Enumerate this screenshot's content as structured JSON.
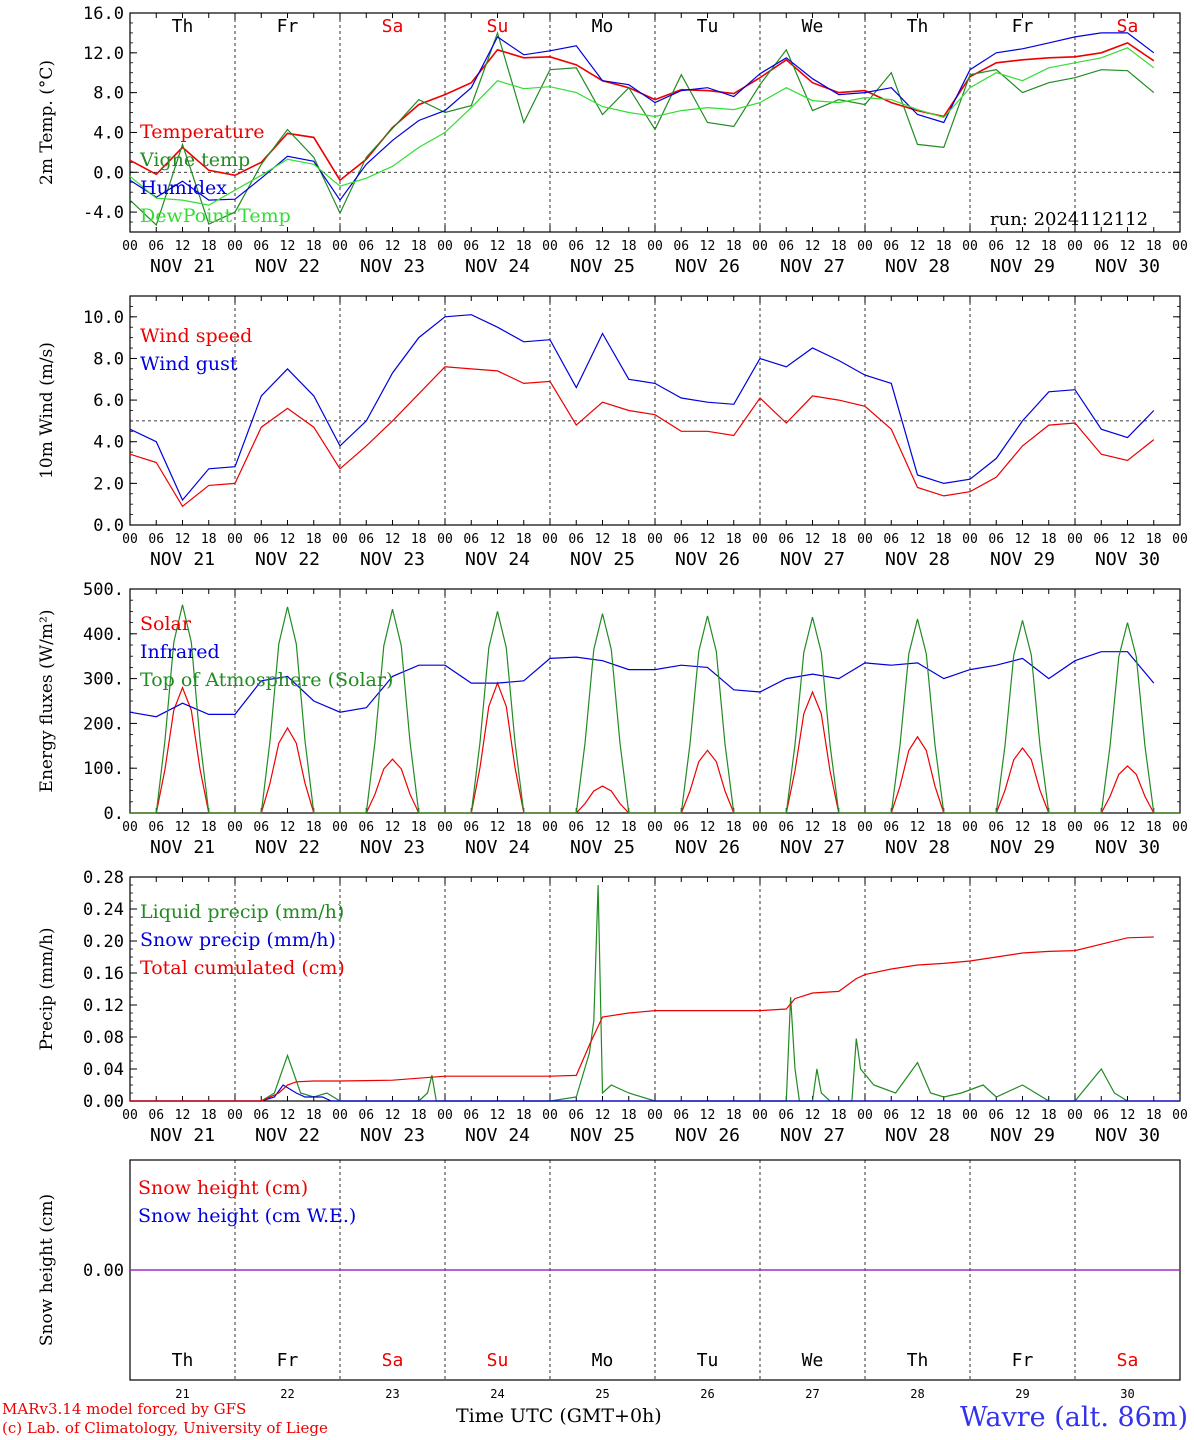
{
  "run_label": "run: 2024112112",
  "footer": {
    "credit_line1": "MARv3.14 model forced by GFS",
    "credit_line2": "(c) Lab. of Climatology, University of Liege",
    "xlabel": "Time UTC (GMT+0h)",
    "station": "Wavre (alt. 86m)"
  },
  "days": {
    "weekdays": [
      "Th",
      "Fr",
      "Sa",
      "Su",
      "Mo",
      "Tu",
      "We",
      "Th",
      "Fr",
      "Sa"
    ],
    "weekend_flags": [
      false,
      false,
      true,
      true,
      false,
      false,
      false,
      false,
      false,
      true
    ],
    "date_labels": [
      "NOV 21",
      "NOV 22",
      "NOV 23",
      "NOV 24",
      "NOV 25",
      "NOV 26",
      "NOV 27",
      "NOV 28",
      "NOV 29",
      "NOV 30"
    ],
    "day_numbers": [
      "21",
      "22",
      "23",
      "24",
      "25",
      "26",
      "27",
      "28",
      "29",
      "30"
    ],
    "hour_ticks": [
      "00",
      "06",
      "12",
      "18"
    ],
    "hour_tick_final": "00"
  },
  "colors": {
    "red": "#ee0000",
    "darkgreen": "#228b22",
    "blue": "#0000dd",
    "lightgreen": "#33dd33",
    "purple": "#8a2be2",
    "weekend": "#ee0000"
  },
  "chart_data": [
    {
      "type": "line",
      "ylabel": "2m Temp. (°C)",
      "ylim": [
        -6,
        16
      ],
      "yticks": [
        "-4.0",
        "0.0",
        "4.0",
        "8.0",
        "12.0",
        "16.0"
      ],
      "ytick_values": [
        -4,
        0,
        4,
        8,
        12,
        16
      ],
      "hline": 0,
      "x_unit": "hours since NOV 21 00 UTC",
      "series": [
        {
          "name": "Temperature",
          "color": "#ee0000",
          "x": [
            0,
            6,
            12,
            18,
            24,
            30,
            36,
            42,
            48,
            54,
            60,
            66,
            72,
            78,
            84,
            90,
            96,
            102,
            108,
            114,
            120,
            126,
            132,
            138,
            144,
            150,
            156,
            162,
            168,
            174,
            180,
            186,
            192,
            198,
            204,
            210,
            216,
            222,
            228,
            234
          ],
          "y": [
            1.2,
            -0.2,
            2.5,
            0.2,
            -0.3,
            1.0,
            3.9,
            3.5,
            -0.8,
            1.3,
            4.5,
            6.8,
            7.8,
            9.0,
            12.3,
            11.5,
            11.6,
            10.8,
            9.2,
            8.5,
            7.3,
            8.3,
            8.2,
            7.9,
            9.5,
            11.3,
            9.0,
            8.0,
            8.2,
            7.0,
            6.2,
            5.6,
            9.6,
            11.0,
            11.3,
            11.5,
            11.6,
            12.0,
            13.0,
            11.2
          ]
        },
        {
          "name": "Vigne temp",
          "color": "#228b22",
          "x": [
            0,
            6,
            12,
            18,
            24,
            30,
            36,
            42,
            48,
            54,
            60,
            66,
            72,
            78,
            84,
            90,
            96,
            102,
            108,
            114,
            120,
            126,
            132,
            138,
            144,
            150,
            156,
            162,
            168,
            174,
            180,
            186,
            192,
            198,
            204,
            210,
            216,
            222,
            228,
            234
          ],
          "y": [
            -2.8,
            -5.3,
            2.8,
            -5.2,
            -4.0,
            0.8,
            4.3,
            1.5,
            -4.1,
            1.5,
            4.4,
            7.3,
            6.0,
            6.7,
            14.0,
            5.0,
            10.3,
            10.5,
            5.8,
            8.5,
            4.3,
            9.8,
            5.0,
            4.6,
            8.8,
            12.3,
            6.2,
            7.3,
            6.8,
            10.0,
            2.8,
            2.5,
            9.8,
            10.3,
            8.0,
            9.0,
            9.5,
            10.3,
            10.2,
            8.0
          ]
        },
        {
          "name": "Humidex",
          "color": "#0000dd",
          "x": [
            0,
            6,
            12,
            18,
            24,
            30,
            36,
            42,
            48,
            54,
            60,
            66,
            72,
            78,
            84,
            90,
            96,
            102,
            108,
            114,
            120,
            126,
            132,
            138,
            144,
            150,
            156,
            162,
            168,
            174,
            180,
            186,
            192,
            198,
            204,
            210,
            216,
            222,
            228,
            234
          ],
          "y": [
            -0.8,
            -2.5,
            -0.9,
            -2.8,
            -2.7,
            -0.6,
            1.6,
            1.1,
            -2.8,
            0.8,
            3.2,
            5.2,
            6.2,
            8.5,
            13.6,
            11.8,
            12.2,
            12.7,
            9.2,
            8.8,
            7.0,
            8.2,
            8.5,
            7.6,
            9.9,
            11.5,
            9.4,
            7.8,
            8.0,
            8.5,
            5.8,
            5.0,
            10.3,
            12.0,
            12.4,
            13.0,
            13.6,
            14.0,
            14.0,
            12.0
          ]
        },
        {
          "name": "DewPoint Temp",
          "color": "#33dd33",
          "x": [
            0,
            6,
            12,
            18,
            24,
            30,
            36,
            42,
            48,
            54,
            60,
            66,
            72,
            78,
            84,
            90,
            96,
            102,
            108,
            114,
            120,
            126,
            132,
            138,
            144,
            150,
            156,
            162,
            168,
            174,
            180,
            186,
            192,
            198,
            204,
            210,
            216,
            222,
            228,
            234
          ],
          "y": [
            -0.4,
            -2.6,
            -2.8,
            -3.3,
            -1.8,
            -0.3,
            1.3,
            0.8,
            -1.4,
            -0.6,
            0.6,
            2.5,
            4.0,
            6.5,
            9.2,
            8.4,
            8.6,
            8.0,
            6.6,
            6.0,
            5.6,
            6.2,
            6.5,
            6.3,
            7.0,
            8.5,
            7.2,
            7.0,
            7.5,
            7.3,
            6.3,
            5.5,
            8.5,
            10.0,
            9.2,
            10.5,
            11.0,
            11.5,
            12.5,
            10.5
          ]
        }
      ]
    },
    {
      "type": "line",
      "ylabel": "10m Wind (m/s)",
      "ylim": [
        0,
        11
      ],
      "yticks": [
        "0.0",
        "2.0",
        "4.0",
        "6.0",
        "8.0",
        "10.0"
      ],
      "ytick_values": [
        0,
        2,
        4,
        6,
        8,
        10
      ],
      "hline": 5,
      "x_unit": "hours since NOV 21 00 UTC",
      "series": [
        {
          "name": "Wind speed",
          "color": "#ee0000",
          "x": [
            0,
            6,
            12,
            18,
            24,
            30,
            36,
            42,
            48,
            54,
            60,
            66,
            72,
            78,
            84,
            90,
            96,
            102,
            108,
            114,
            120,
            126,
            132,
            138,
            144,
            150,
            156,
            162,
            168,
            174,
            180,
            186,
            192,
            198,
            204,
            210,
            216,
            222,
            228,
            234
          ],
          "y": [
            3.4,
            3.0,
            0.9,
            1.9,
            2.0,
            4.7,
            5.6,
            4.7,
            2.7,
            3.8,
            5.0,
            6.3,
            7.6,
            7.5,
            7.4,
            6.8,
            6.9,
            4.8,
            5.9,
            5.5,
            5.3,
            4.5,
            4.5,
            4.3,
            6.1,
            4.9,
            6.2,
            6.0,
            5.7,
            4.6,
            1.8,
            1.4,
            1.6,
            2.3,
            3.8,
            4.8,
            4.9,
            3.4,
            3.1,
            4.1
          ]
        },
        {
          "name": "Wind gust",
          "color": "#0000dd",
          "x": [
            0,
            6,
            12,
            18,
            24,
            30,
            36,
            42,
            48,
            54,
            60,
            66,
            72,
            78,
            84,
            90,
            96,
            102,
            108,
            114,
            120,
            126,
            132,
            138,
            144,
            150,
            156,
            162,
            168,
            174,
            180,
            186,
            192,
            198,
            204,
            210,
            216,
            222,
            228,
            234
          ],
          "y": [
            4.6,
            4.0,
            1.2,
            2.7,
            2.8,
            6.2,
            7.5,
            6.2,
            3.8,
            5.0,
            7.3,
            9.0,
            10.0,
            10.1,
            9.5,
            8.8,
            8.9,
            6.6,
            9.2,
            7.0,
            6.8,
            6.1,
            5.9,
            5.8,
            8.0,
            7.6,
            8.5,
            7.9,
            7.2,
            6.8,
            2.4,
            2.0,
            2.2,
            3.2,
            5.0,
            6.4,
            6.5,
            4.6,
            4.2,
            5.5
          ]
        }
      ]
    },
    {
      "type": "line",
      "ylabel": "Energy fluxes (W/m²)",
      "ylim": [
        0,
        500
      ],
      "yticks": [
        "0.",
        "100.",
        "200.",
        "300.",
        "400.",
        "500."
      ],
      "ytick_values": [
        0,
        100,
        200,
        300,
        400,
        500
      ],
      "x_unit": "hours since NOV 21 00 UTC",
      "series": [
        {
          "name": "Solar",
          "color": "#ee0000",
          "peaks": [
            {
              "x": 12,
              "y": 280
            },
            {
              "x": 36,
              "y": 190
            },
            {
              "x": 60,
              "y": 120
            },
            {
              "x": 84,
              "y": 290
            },
            {
              "x": 108,
              "y": 60
            },
            {
              "x": 132,
              "y": 140
            },
            {
              "x": 156,
              "y": 270
            },
            {
              "x": 180,
              "y": 170
            },
            {
              "x": 204,
              "y": 145
            },
            {
              "x": 228,
              "y": 105
            }
          ]
        },
        {
          "name": "Infrared",
          "color": "#0000dd",
          "x": [
            0,
            6,
            12,
            18,
            24,
            30,
            36,
            42,
            48,
            54,
            60,
            66,
            72,
            78,
            84,
            90,
            96,
            102,
            108,
            114,
            120,
            126,
            132,
            138,
            144,
            150,
            156,
            162,
            168,
            174,
            180,
            186,
            192,
            198,
            204,
            210,
            216,
            222,
            228,
            234
          ],
          "y": [
            225,
            215,
            245,
            220,
            220,
            295,
            305,
            250,
            225,
            235,
            305,
            330,
            330,
            290,
            290,
            295,
            345,
            348,
            340,
            320,
            320,
            330,
            325,
            275,
            270,
            300,
            310,
            300,
            335,
            330,
            335,
            300,
            320,
            330,
            345,
            300,
            340,
            360,
            360,
            290
          ]
        },
        {
          "name": "Top of Atmosphere (Solar)",
          "color": "#228b22",
          "peaks": [
            {
              "x": 12,
              "y": 465
            },
            {
              "x": 36,
              "y": 460
            },
            {
              "x": 60,
              "y": 455
            },
            {
              "x": 84,
              "y": 450
            },
            {
              "x": 108,
              "y": 445
            },
            {
              "x": 132,
              "y": 440
            },
            {
              "x": 156,
              "y": 437
            },
            {
              "x": 180,
              "y": 433
            },
            {
              "x": 204,
              "y": 430
            },
            {
              "x": 228,
              "y": 425
            }
          ]
        }
      ]
    },
    {
      "type": "line",
      "ylabel": "Precip (mm/h)",
      "ylim": [
        0,
        0.28
      ],
      "yticks": [
        "0.00",
        "0.04",
        "0.08",
        "0.12",
        "0.16",
        "0.20",
        "0.24",
        "0.28"
      ],
      "ytick_values": [
        0,
        0.04,
        0.08,
        0.12,
        0.16,
        0.2,
        0.24,
        0.28
      ],
      "x_unit": "hours since NOV 21 00 UTC",
      "series": [
        {
          "name": "Liquid precip (mm/h)",
          "color": "#228b22",
          "x": [
            0,
            30,
            33,
            36,
            39,
            42,
            45,
            48,
            60,
            66,
            68,
            69,
            70,
            72,
            96,
            102,
            105,
            106,
            107,
            108,
            110,
            112,
            114,
            120,
            150,
            151,
            152,
            153,
            156,
            157,
            158,
            160,
            165,
            166,
            167,
            170,
            175,
            180,
            183,
            186,
            190,
            195,
            198,
            204,
            210,
            216,
            219,
            222,
            225,
            228
          ],
          "y": [
            0,
            0,
            0.01,
            0.057,
            0.01,
            0.005,
            0.01,
            0,
            0,
            0,
            0.01,
            0.032,
            0,
            0,
            0,
            0.005,
            0.06,
            0.1,
            0.27,
            0.01,
            0.02,
            0.015,
            0.01,
            0,
            0,
            0.13,
            0.04,
            0,
            0,
            0.04,
            0.01,
            0,
            0,
            0.078,
            0.04,
            0.02,
            0.01,
            0.048,
            0.01,
            0.005,
            0.01,
            0.02,
            0.005,
            0.02,
            0,
            0,
            0.02,
            0.04,
            0.01,
            0
          ]
        },
        {
          "name": "Snow precip (mm/h)",
          "color": "#0000dd",
          "x": [
            0,
            30,
            33,
            35,
            38,
            40,
            44,
            46,
            240
          ],
          "y": [
            0,
            0,
            0.005,
            0.02,
            0.01,
            0.005,
            0.005,
            0,
            0
          ]
        },
        {
          "name": "Total cumulated (cm)",
          "color": "#ee0000",
          "x": [
            0,
            30,
            34,
            36,
            38,
            42,
            48,
            60,
            72,
            90,
            96,
            102,
            105,
            108,
            114,
            120,
            132,
            144,
            150,
            152,
            156,
            162,
            166,
            168,
            174,
            180,
            186,
            192,
            198,
            204,
            210,
            216,
            222,
            228,
            234
          ],
          "y": [
            0,
            0,
            0.01,
            0.02,
            0.024,
            0.025,
            0.025,
            0.026,
            0.031,
            0.031,
            0.031,
            0.032,
            0.07,
            0.105,
            0.11,
            0.113,
            0.113,
            0.113,
            0.115,
            0.128,
            0.135,
            0.137,
            0.153,
            0.158,
            0.165,
            0.17,
            0.172,
            0.175,
            0.18,
            0.185,
            0.187,
            0.188,
            0.196,
            0.204,
            0.205
          ]
        }
      ]
    },
    {
      "type": "line",
      "ylabel": "Snow height (cm)",
      "ylim": [
        -1,
        1
      ],
      "yticks": [
        "0.00"
      ],
      "ytick_values": [
        0
      ],
      "x_unit": "hours since NOV 21 00 UTC",
      "series": [
        {
          "name": "Snow height (cm)",
          "color": "#ee0000",
          "x": [
            0,
            240
          ],
          "y": [
            0,
            0
          ]
        },
        {
          "name": "Snow height (cm W.E.)",
          "color": "#0000dd",
          "x": [
            0,
            240
          ],
          "y": [
            0,
            0
          ]
        }
      ]
    }
  ]
}
